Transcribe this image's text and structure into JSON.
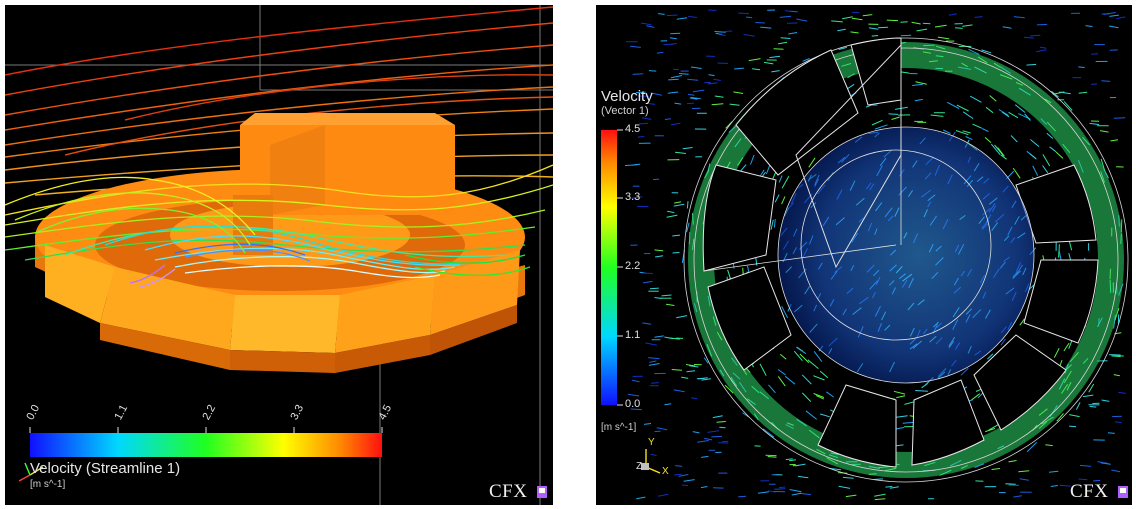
{
  "colors": {
    "background": "#000000",
    "colormap": [
      "#1010ff",
      "#00c8ff",
      "#20ff20",
      "#ffff00",
      "#ff7a00",
      "#ff1a10"
    ],
    "solid_orange": "#ff8c12",
    "solid_yellow": "#ffb82a"
  },
  "left_panel": {
    "legend": {
      "title": "Velocity  (Streamline  1)",
      "unit": "[m s^-1]",
      "ticks": [
        "0.0",
        "1.1",
        "2.2",
        "3.3",
        "4.5"
      ],
      "orientation": "horizontal"
    },
    "brand": "CFX",
    "logo_icon": "cfx-logo-icon"
  },
  "right_panel": {
    "legend": {
      "title": "Velocity",
      "subtitle": "(Vector  1)",
      "unit": "[m s^-1]",
      "ticks": [
        "4.5",
        "3.3",
        "2.2",
        "1.1",
        "0.0"
      ],
      "orientation": "vertical"
    },
    "axes": {
      "y": "Y",
      "z": "Z",
      "x": "X"
    },
    "brand": "CFX",
    "logo_icon": "cfx-logo-icon"
  }
}
